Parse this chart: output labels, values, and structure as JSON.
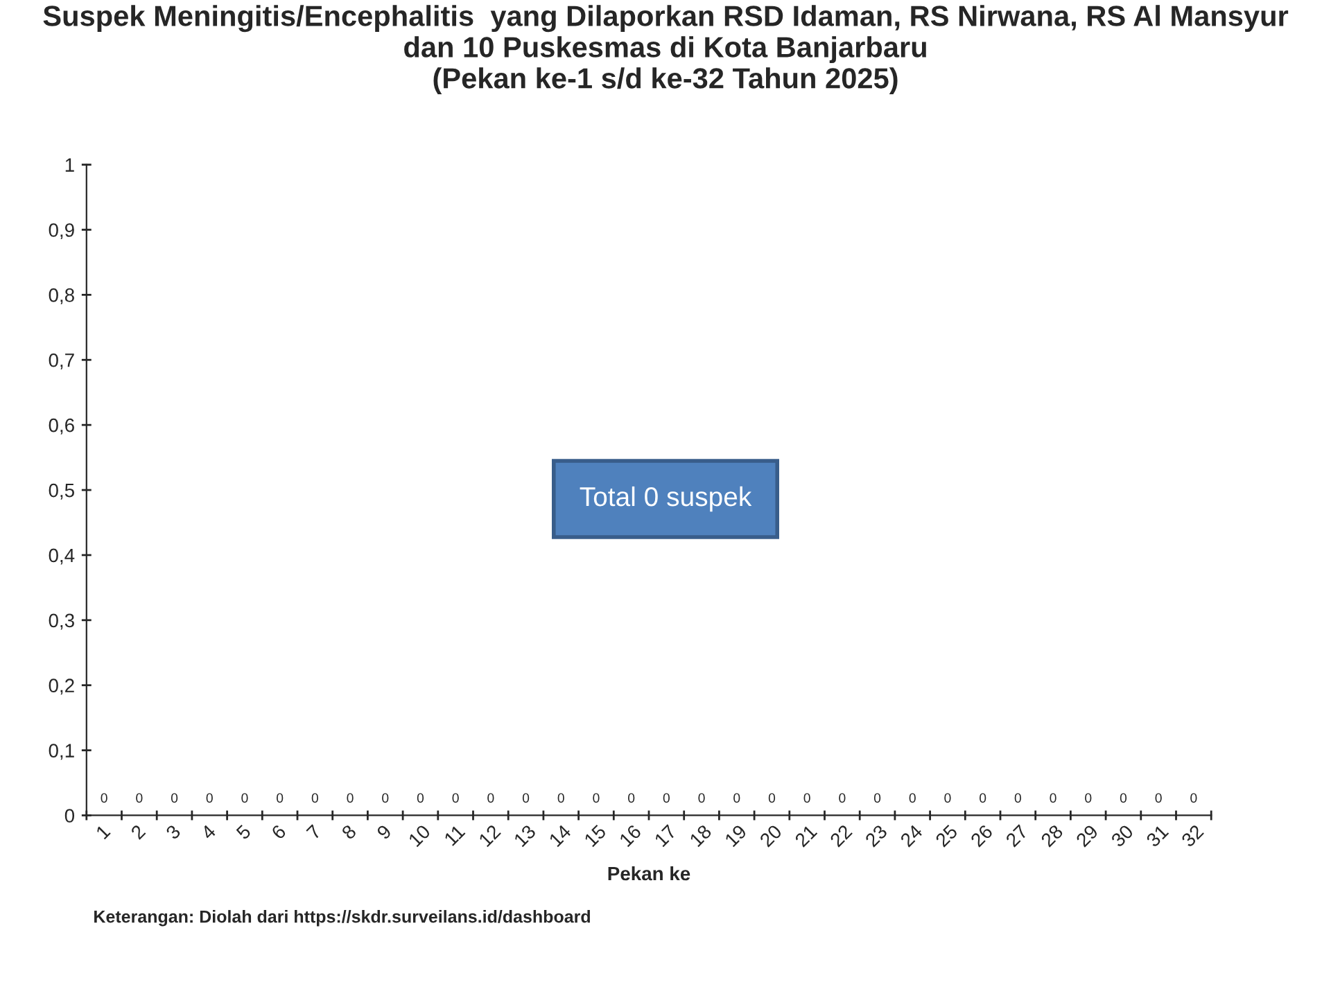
{
  "chart_data": {
    "type": "bar",
    "title": "Suspek Meningitis/Encephalitis  yang Dilaporkan RSD Idaman, RS Nirwana, RS Al Mansyur\ndan 10 Puskesmas di Kota Banjarbaru\n(Pekan ke-1 s/d ke-32 Tahun 2025)",
    "xlabel": "Pekan ke",
    "categories": [
      "1",
      "2",
      "3",
      "4",
      "5",
      "6",
      "7",
      "8",
      "9",
      "10",
      "11",
      "12",
      "13",
      "14",
      "15",
      "16",
      "17",
      "18",
      "19",
      "20",
      "21",
      "22",
      "23",
      "24",
      "25",
      "26",
      "27",
      "28",
      "29",
      "30",
      "31",
      "32"
    ],
    "values": [
      0,
      0,
      0,
      0,
      0,
      0,
      0,
      0,
      0,
      0,
      0,
      0,
      0,
      0,
      0,
      0,
      0,
      0,
      0,
      0,
      0,
      0,
      0,
      0,
      0,
      0,
      0,
      0,
      0,
      0,
      0,
      0
    ],
    "data_labels": true,
    "ylim": [
      0,
      1
    ],
    "yticks": [
      0,
      {
        "value": 0.1,
        "label": "0,1"
      },
      {
        "value": 0.2,
        "label": "0,2"
      },
      {
        "value": 0.3,
        "label": "0,3"
      },
      {
        "value": 0.4,
        "label": "0,4"
      },
      {
        "value": 0.5,
        "label": "0,5"
      },
      {
        "value": 0.6,
        "label": "0,6"
      },
      {
        "value": 0.7,
        "label": "0,7"
      },
      {
        "value": 0.8,
        "label": "0,8"
      },
      {
        "value": 0.9,
        "label": "0,9"
      },
      1
    ],
    "grid": false,
    "legend": false,
    "annotations": [
      "Total 0 suspek",
      "Keterangan: Diolah dari https://skdr.surveilans.id/dashboard"
    ]
  }
}
